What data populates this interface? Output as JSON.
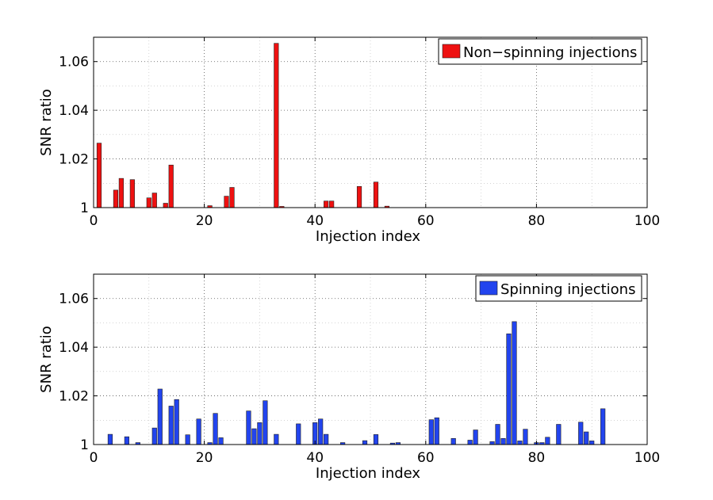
{
  "chart_data": [
    {
      "type": "bar",
      "xlabel": "Injection index",
      "ylabel": "SNR ratio",
      "xlim": [
        0,
        100
      ],
      "ylim": [
        1,
        1.07
      ],
      "xticks": [
        "0",
        "20",
        "40",
        "60",
        "80",
        "100"
      ],
      "yticks": [
        "1",
        "1.02",
        "1.04",
        "1.06"
      ],
      "grid": true,
      "legend_position": "top-right",
      "series": [
        {
          "name": "Non−spinning injections",
          "color": "#ee1111",
          "x": [
            1,
            4,
            5,
            7,
            10,
            11,
            13,
            14,
            21,
            24,
            25,
            33,
            34,
            42,
            43,
            48,
            51,
            53
          ],
          "values": [
            1.0265,
            1.0072,
            1.012,
            1.0115,
            1.004,
            1.006,
            1.0018,
            1.0175,
            1.0008,
            1.0047,
            1.0083,
            1.0675,
            1.0005,
            1.0027,
            1.0027,
            1.0087,
            1.0105,
            1.0006
          ]
        }
      ]
    },
    {
      "type": "bar",
      "xlabel": "Injection index",
      "ylabel": "SNR ratio",
      "xlim": [
        0,
        100
      ],
      "ylim": [
        1,
        1.07
      ],
      "xticks": [
        "0",
        "20",
        "40",
        "60",
        "80",
        "100"
      ],
      "yticks": [
        "1",
        "1.02",
        "1.04",
        "1.06"
      ],
      "grid": true,
      "legend_position": "top-right",
      "series": [
        {
          "name": "Spinning injections",
          "color": "#2244ee",
          "x": [
            3,
            6,
            8,
            11,
            12,
            14,
            15,
            17,
            19,
            21,
            22,
            23,
            28,
            29,
            30,
            31,
            33,
            37,
            40,
            41,
            42,
            45,
            49,
            51,
            54,
            55,
            61,
            62,
            65,
            68,
            69,
            72,
            73,
            74,
            75,
            76,
            77,
            78,
            80,
            81,
            82,
            84,
            88,
            89,
            90,
            92
          ],
          "values": [
            1.0042,
            1.0032,
            1.0008,
            1.0068,
            1.0228,
            1.0158,
            1.0185,
            1.004,
            1.0105,
            1.0008,
            1.0128,
            1.0028,
            1.0138,
            1.0065,
            1.009,
            1.018,
            1.0042,
            1.0085,
            1.009,
            1.0105,
            1.0042,
            1.0008,
            1.0016,
            1.0041,
            1.0006,
            1.0008,
            1.0102,
            1.011,
            1.0025,
            1.0018,
            1.006,
            1.0012,
            1.0083,
            1.0025,
            1.0455,
            1.0505,
            1.0015,
            1.0063,
            1.0008,
            1.0008,
            1.003,
            1.0083,
            1.0092,
            1.0052,
            1.0015,
            1.0147
          ]
        }
      ]
    }
  ]
}
